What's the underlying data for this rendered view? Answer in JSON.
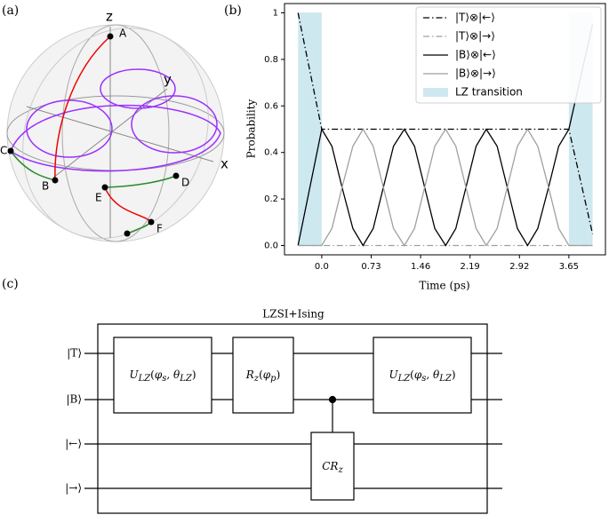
{
  "panel_labels": [
    "(a)",
    "(b)",
    "(c)"
  ],
  "bloch": {
    "axes": [
      "x",
      "y",
      "z"
    ],
    "points": [
      "A",
      "B",
      "C",
      "D",
      "E",
      "F"
    ]
  },
  "chart_data": {
    "type": "line",
    "xlabel": "Time (ps)",
    "ylabel": "Probability",
    "x": [
      -0.35,
      0,
      0.15,
      0.3,
      0.46,
      0.61,
      0.76,
      0.91,
      1.06,
      1.22,
      1.37,
      1.52,
      1.67,
      1.83,
      1.98,
      2.13,
      2.28,
      2.43,
      2.59,
      2.74,
      2.89,
      3.04,
      3.19,
      3.35,
      3.5,
      3.65,
      4.0
    ],
    "series": [
      {
        "name": "|T⟩⊗|←⟩",
        "color": "#000000",
        "linestyle": "dashdot",
        "values": [
          1,
          0.5,
          0.5,
          0.5,
          0.5,
          0.5,
          0.5,
          0.5,
          0.5,
          0.5,
          0.5,
          0.5,
          0.5,
          0.5,
          0.5,
          0.5,
          0.5,
          0.5,
          0.5,
          0.5,
          0.5,
          0.5,
          0.5,
          0.5,
          0.5,
          0.5,
          0.05
        ]
      },
      {
        "name": "|T⟩⊗|→⟩",
        "color": "#a0a0a0",
        "linestyle": "dashdot",
        "values": [
          0,
          0,
          0,
          0,
          0,
          0,
          0,
          0,
          0,
          0,
          0,
          0,
          0,
          0,
          0,
          0,
          0,
          0,
          0,
          0,
          0,
          0,
          0,
          0,
          0,
          0,
          0
        ]
      },
      {
        "name": "|B⟩⊗|←⟩",
        "color": "#000000",
        "linestyle": "solid",
        "values": [
          0,
          0.5,
          0.427,
          0.25,
          0.073,
          0,
          0.073,
          0.25,
          0.427,
          0.5,
          0.427,
          0.25,
          0.073,
          0,
          0.073,
          0.25,
          0.427,
          0.5,
          0.427,
          0.25,
          0.073,
          0,
          0.073,
          0.25,
          0.427,
          0.5,
          0.95
        ]
      },
      {
        "name": "|B⟩⊗|→⟩",
        "color": "#a0a0a0",
        "linestyle": "solid",
        "values": [
          0,
          0,
          0.073,
          0.25,
          0.427,
          0.5,
          0.427,
          0.25,
          0.073,
          0,
          0.073,
          0.25,
          0.427,
          0.5,
          0.427,
          0.25,
          0.073,
          0,
          0.073,
          0.25,
          0.427,
          0.5,
          0.427,
          0.25,
          0.073,
          0,
          0
        ]
      }
    ],
    "shaded": {
      "name": "LZ transition",
      "color": "#add8e6",
      "ranges": [
        [
          -0.35,
          0
        ],
        [
          3.65,
          4.0
        ]
      ]
    },
    "xlim": [
      -0.55,
      4.19
    ],
    "ylim": [
      -0.04,
      1.04
    ],
    "xticks": [
      {
        "value": 0,
        "label": "0.0"
      },
      0.73,
      1.46,
      2.19,
      2.92,
      3.65
    ],
    "yticks": [
      {
        "value": 0,
        "label": "0.0"
      },
      0.2,
      0.4,
      0.6,
      0.8,
      1
    ],
    "legend": "upper right"
  },
  "circuit": {
    "title": "LZSI+Ising",
    "wires": [
      "|T⟩",
      "|B⟩",
      "|←⟩",
      "|→⟩"
    ],
    "gate_u": {
      "main": "U",
      "sub": "LZ",
      "a1": "φ",
      "a1sub": "s",
      "a2": "θ",
      "a2sub": "LZ"
    },
    "gate_rz": {
      "main": "R",
      "sub": "z",
      "a1": "φ",
      "a1sub": "p"
    },
    "gate_cr": {
      "main": "CR",
      "sub": "z"
    }
  }
}
